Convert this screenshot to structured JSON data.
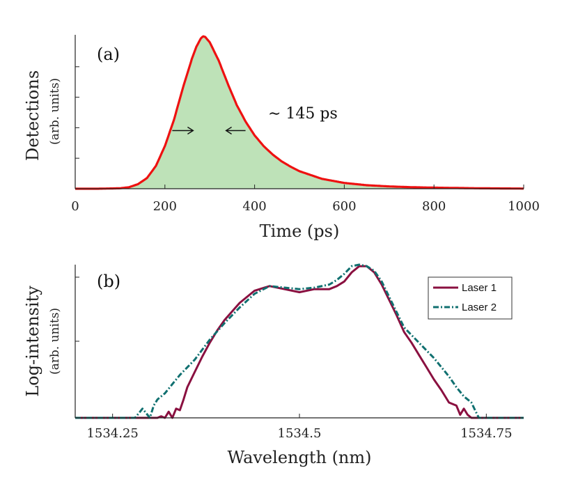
{
  "colors": {
    "axis": "#222222",
    "pulse_line": "#ee1111",
    "pulse_fill": "#a8d8a0",
    "laser1": "#8a1040",
    "laser2": "#107070"
  },
  "chart_data": [
    {
      "type": "area",
      "panel_label": "(a)",
      "title": "",
      "xlabel": "Time (ps)",
      "ylabel": "Detections",
      "ylabel_units": "(arb. units)",
      "xlim": [
        0,
        1000
      ],
      "ylim": [
        0,
        1.0
      ],
      "xticks": [
        0,
        200,
        400,
        600,
        800,
        1000
      ],
      "xtick_labels": [
        "0",
        "200",
        "400",
        "600",
        "800",
        "1000"
      ],
      "yticks": [
        0.2,
        0.4,
        0.6,
        0.8
      ],
      "grid": false,
      "annotation": {
        "text": "∼ 145 ps",
        "fwhm_left_ps": 218,
        "fwhm_right_ps": 372,
        "at_level": 0.5
      },
      "series": [
        {
          "name": "Detections",
          "x": [
            0,
            50,
            100,
            120,
            140,
            160,
            180,
            200,
            220,
            240,
            260,
            270,
            280,
            285,
            290,
            300,
            320,
            340,
            360,
            380,
            400,
            420,
            440,
            460,
            480,
            500,
            550,
            600,
            650,
            700,
            750,
            800,
            850,
            900,
            950,
            1000
          ],
          "y": [
            0.0,
            0.0,
            0.003,
            0.01,
            0.03,
            0.07,
            0.15,
            0.28,
            0.45,
            0.66,
            0.85,
            0.93,
            0.985,
            1.0,
            0.995,
            0.96,
            0.84,
            0.69,
            0.55,
            0.44,
            0.35,
            0.28,
            0.225,
            0.18,
            0.145,
            0.115,
            0.065,
            0.038,
            0.023,
            0.015,
            0.01,
            0.007,
            0.005,
            0.003,
            0.002,
            0.001
          ]
        }
      ]
    },
    {
      "type": "line",
      "panel_label": "(b)",
      "title": "",
      "xlabel": "Wavelength (nm)",
      "ylabel": "Log-intensity",
      "ylabel_units": "(arb. units)",
      "xlim": [
        1534.2,
        1534.8
      ],
      "ylim": [
        0,
        1.0
      ],
      "xticks": [
        1534.25,
        1534.5,
        1534.75
      ],
      "xtick_labels": [
        "1534.25",
        "1534.5",
        "1534.75"
      ],
      "yticks": [
        0.5
      ],
      "grid": false,
      "legend_position": "top-right",
      "series": [
        {
          "name": "Laser 1",
          "style": "solid",
          "x": [
            1534.2,
            1534.3,
            1534.31,
            1534.315,
            1534.32,
            1534.325,
            1534.33,
            1534.335,
            1534.34,
            1534.345,
            1534.35,
            1534.36,
            1534.37,
            1534.38,
            1534.39,
            1534.4,
            1534.42,
            1534.44,
            1534.46,
            1534.48,
            1534.5,
            1534.52,
            1534.54,
            1534.55,
            1534.56,
            1534.57,
            1534.58,
            1534.59,
            1534.6,
            1534.61,
            1534.62,
            1534.63,
            1534.64,
            1534.65,
            1534.66,
            1534.67,
            1534.68,
            1534.69,
            1534.7,
            1534.71,
            1534.715,
            1534.72,
            1534.725,
            1534.73,
            1534.8
          ],
          "y": [
            0.0,
            0.0,
            0.0,
            0.01,
            0.0,
            0.04,
            0.0,
            0.06,
            0.05,
            0.12,
            0.2,
            0.3,
            0.4,
            0.49,
            0.57,
            0.64,
            0.75,
            0.83,
            0.86,
            0.84,
            0.82,
            0.84,
            0.84,
            0.86,
            0.89,
            0.95,
            0.99,
            0.99,
            0.95,
            0.87,
            0.77,
            0.67,
            0.56,
            0.49,
            0.41,
            0.33,
            0.25,
            0.18,
            0.1,
            0.08,
            0.02,
            0.06,
            0.02,
            0.0,
            0.0
          ]
        },
        {
          "name": "Laser 2",
          "style": "dashdot",
          "x": [
            1534.2,
            1534.28,
            1534.29,
            1534.3,
            1534.305,
            1534.31,
            1534.32,
            1534.33,
            1534.34,
            1534.36,
            1534.38,
            1534.4,
            1534.42,
            1534.44,
            1534.46,
            1534.48,
            1534.5,
            1534.52,
            1534.54,
            1534.55,
            1534.56,
            1534.57,
            1534.58,
            1534.59,
            1534.6,
            1534.61,
            1534.62,
            1534.63,
            1534.64,
            1534.66,
            1534.68,
            1534.7,
            1534.71,
            1534.72,
            1534.725,
            1534.73,
            1534.735,
            1534.74,
            1534.8
          ],
          "y": [
            0.0,
            0.0,
            0.06,
            0.0,
            0.08,
            0.12,
            0.16,
            0.22,
            0.28,
            0.38,
            0.51,
            0.62,
            0.72,
            0.81,
            0.86,
            0.85,
            0.84,
            0.85,
            0.87,
            0.9,
            0.94,
            0.99,
            1.0,
            0.99,
            0.96,
            0.89,
            0.79,
            0.69,
            0.59,
            0.49,
            0.39,
            0.27,
            0.2,
            0.14,
            0.12,
            0.1,
            0.05,
            0.0,
            0.0
          ]
        }
      ]
    }
  ]
}
